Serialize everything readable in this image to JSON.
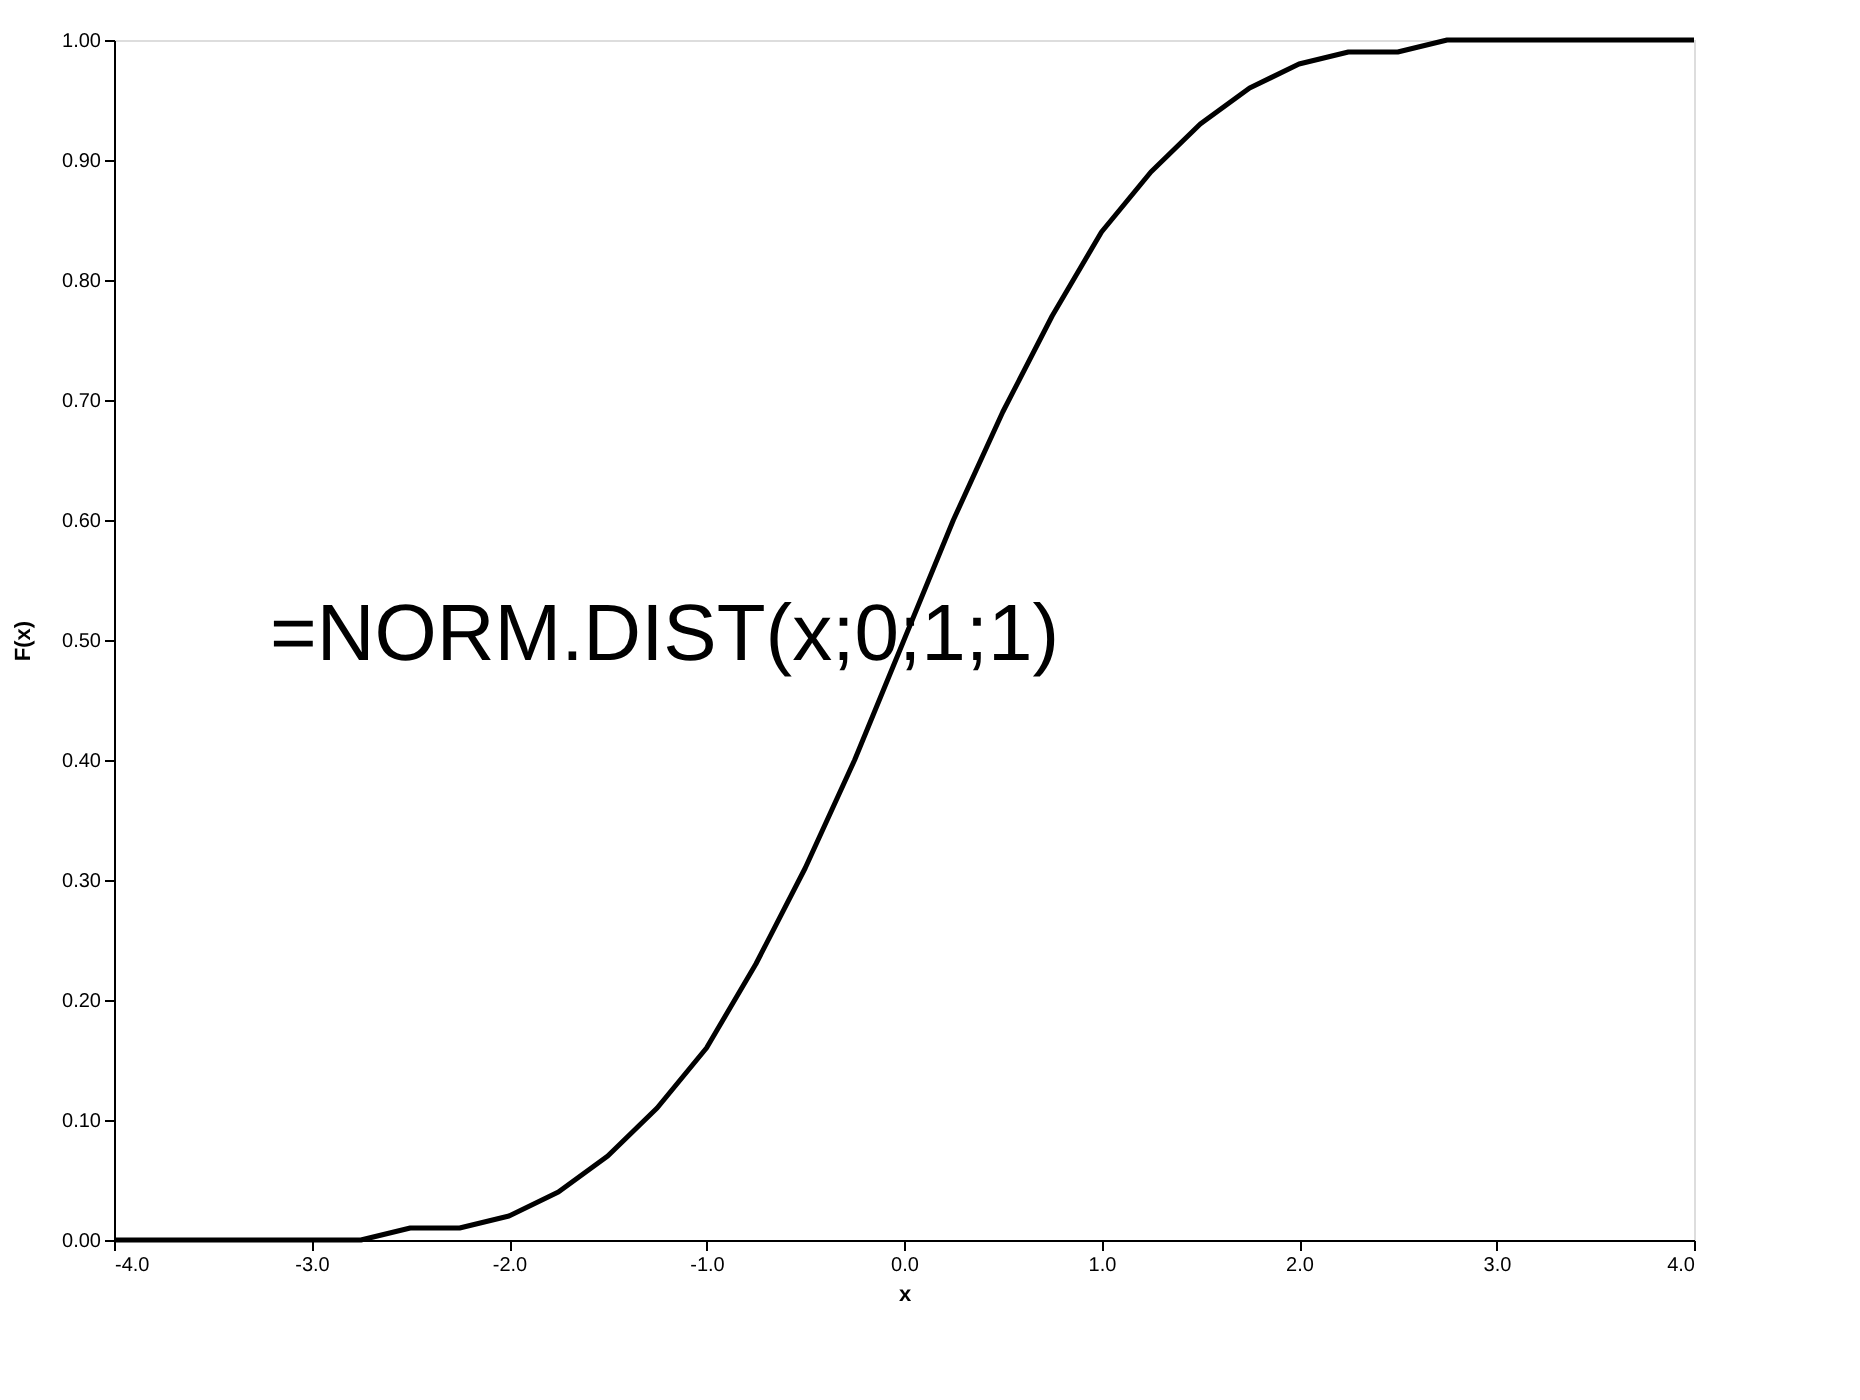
{
  "chart_data": {
    "type": "line",
    "xlabel": "x",
    "ylabel": "F(x)",
    "annotations": [
      "=NORM.DIST(x;0;1;1)"
    ],
    "x": [
      -4,
      -3.75,
      -3.5,
      -3.25,
      -3,
      -2.75,
      -2.5,
      -2.25,
      -2,
      -1.75,
      -1.5,
      -1.25,
      -1,
      -0.75,
      -0.5,
      -0.25,
      0,
      0.25,
      0.5,
      0.75,
      1,
      1.25,
      1.5,
      1.75,
      2,
      2.25,
      2.5,
      2.75,
      3,
      3.25,
      3.5,
      3.75,
      4
    ],
    "series": [
      {
        "color": "#000000",
        "values": [
          0,
          0,
          0,
          0,
          0,
          0,
          0.01,
          0.01,
          0.02,
          0.04,
          0.07,
          0.11,
          0.16,
          0.23,
          0.31,
          0.4,
          0.5,
          0.6,
          0.69,
          0.77,
          0.84,
          0.89,
          0.93,
          0.96,
          0.98,
          0.99,
          0.99,
          1,
          1,
          1,
          1,
          1,
          1
        ]
      }
    ],
    "xlim": [
      -4,
      4
    ],
    "ylim": [
      0,
      1
    ],
    "xticks": [
      {
        "value": -4,
        "label": "-4.0"
      },
      {
        "value": -3,
        "label": "-3.0"
      },
      {
        "value": -2,
        "label": "-2.0"
      },
      {
        "value": -1,
        "label": "-1.0"
      },
      {
        "value": 0,
        "label": "0.0"
      },
      {
        "value": 1,
        "label": "1.0"
      },
      {
        "value": 2,
        "label": "2.0"
      },
      {
        "value": 3,
        "label": "3.0"
      },
      {
        "value": 4,
        "label": "4.0"
      }
    ],
    "yticks": [
      {
        "value": 0,
        "label": "0.00"
      },
      {
        "value": 0.1,
        "label": "0.10"
      },
      {
        "value": 0.2,
        "label": "0.20"
      },
      {
        "value": 0.3,
        "label": "0.30"
      },
      {
        "value": 0.4,
        "label": "0.40"
      },
      {
        "value": 0.5,
        "label": "0.50"
      },
      {
        "value": 0.6,
        "label": "0.60"
      },
      {
        "value": 0.7,
        "label": "0.70"
      },
      {
        "value": 0.8,
        "label": "0.80"
      },
      {
        "value": 0.9,
        "label": "0.90"
      },
      {
        "value": 1,
        "label": "1.00"
      }
    ],
    "grid": false,
    "legend": false,
    "marker": "none",
    "line_style": "solid"
  }
}
